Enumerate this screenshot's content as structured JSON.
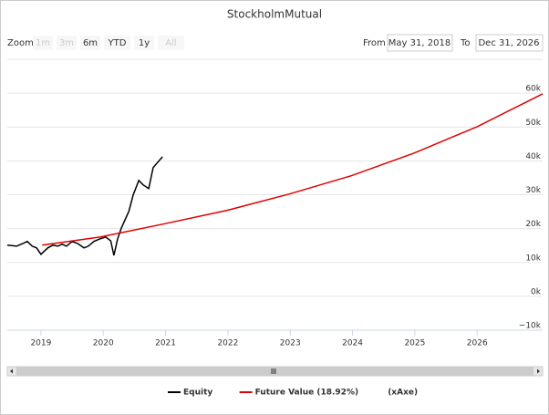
{
  "chart_data": {
    "type": "line",
    "title": "StockholmMutual",
    "range_selector": {
      "label": "Zoom",
      "buttons": [
        "1m",
        "3m",
        "6m",
        "YTD",
        "1y",
        "All"
      ],
      "enabled": [
        false,
        false,
        true,
        true,
        true,
        false
      ]
    },
    "date_range": {
      "from_label": "From",
      "from": "May 31, 2018",
      "to_label": "To",
      "to": "Dec 31, 2026"
    },
    "xlim": [
      2018.46,
      2027.05
    ],
    "xticks": [
      2019,
      2020,
      2021,
      2022,
      2023,
      2024,
      2025,
      2026
    ],
    "ylim": [
      -10000,
      70000
    ],
    "yticks": [
      {
        "value": -10000,
        "label": "−10k"
      },
      {
        "value": 0,
        "label": "0k"
      },
      {
        "value": 10000,
        "label": "10k"
      },
      {
        "value": 20000,
        "label": "20k"
      },
      {
        "value": 30000,
        "label": "30k"
      },
      {
        "value": 40000,
        "label": "40k"
      },
      {
        "value": 50000,
        "label": "50k"
      },
      {
        "value": 60000,
        "label": "60k"
      }
    ],
    "grid": true,
    "series": [
      {
        "name": "Equity",
        "color": "#000000",
        "x": [
          2018.46,
          2018.61,
          2018.71,
          2018.78,
          2018.86,
          2018.93,
          2019.0,
          2019.11,
          2019.19,
          2019.27,
          2019.34,
          2019.41,
          2019.5,
          2019.59,
          2019.69,
          2019.76,
          2019.85,
          2019.95,
          2020.04,
          2020.12,
          2020.17,
          2020.23,
          2020.29,
          2020.41,
          2020.48,
          2020.57,
          2020.64,
          2020.73,
          2020.8,
          2020.95
        ],
        "values": [
          15100,
          14800,
          15600,
          16200,
          14800,
          14300,
          12400,
          14300,
          15100,
          14800,
          15400,
          14800,
          16200,
          15600,
          14300,
          14800,
          16200,
          17000,
          17500,
          16400,
          12100,
          17000,
          20200,
          25100,
          29900,
          34200,
          32900,
          31800,
          38000,
          41200
        ]
      },
      {
        "name": "Future Value (18.92%)",
        "color": "#e00000",
        "x": [
          2019.02,
          2019.95,
          2020.95,
          2021.97,
          2022.98,
          2023.98,
          2024.99,
          2026.0,
          2027.05
        ],
        "values": [
          15100,
          17500,
          21300,
          25300,
          30200,
          35600,
          42300,
          50100,
          59800
        ]
      }
    ],
    "legend_extra": [
      "(xAxe)"
    ]
  }
}
